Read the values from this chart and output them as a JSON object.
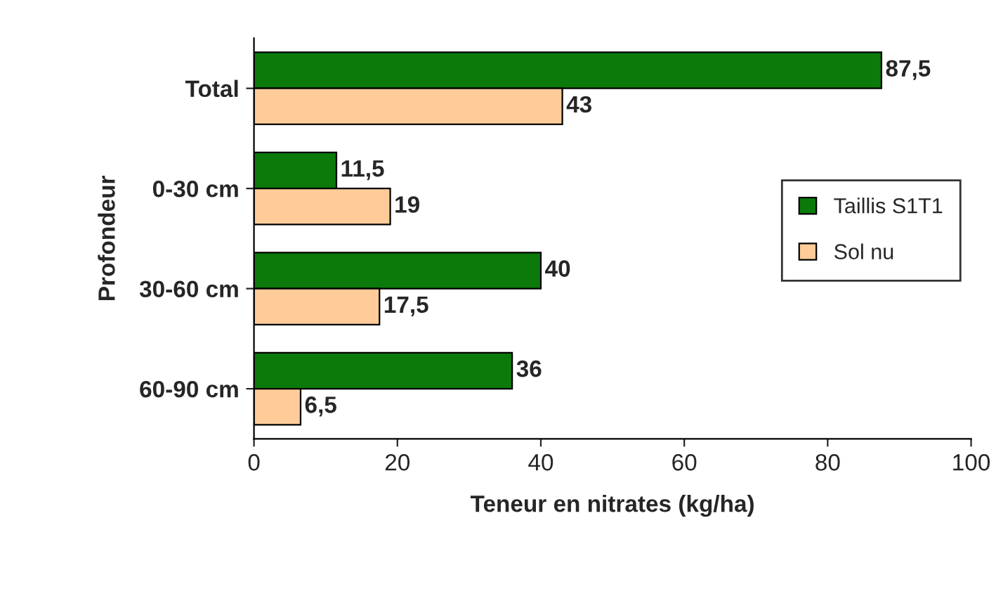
{
  "chart_data": {
    "type": "bar",
    "orientation": "horizontal",
    "xlabel": "Teneur en nitrates (kg/ha)",
    "ylabel": "Profondeur",
    "categories": [
      "Total",
      "0-30 cm",
      "30-60 cm",
      "60-90 cm"
    ],
    "series": [
      {
        "name": "Taillis S1T1",
        "color": "#0b7a0b",
        "values": [
          87.5,
          11.5,
          40,
          36
        ],
        "value_labels": [
          "87,5",
          "11,5",
          "40",
          "36"
        ]
      },
      {
        "name": "Sol nu",
        "color": "#ffcc99",
        "values": [
          43,
          19,
          17.5,
          6.5
        ],
        "value_labels": [
          "43",
          "19",
          "17,5",
          "6,5"
        ]
      }
    ],
    "xlim": [
      0,
      100
    ],
    "xticks": [
      0,
      20,
      40,
      60,
      80,
      100
    ],
    "grid": false,
    "legend": "right"
  }
}
